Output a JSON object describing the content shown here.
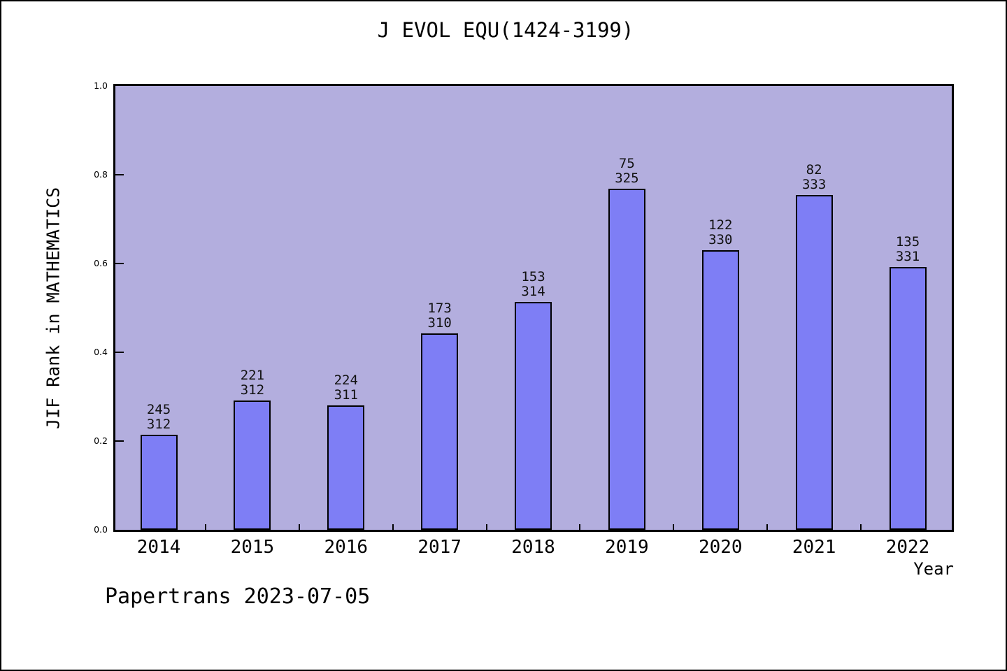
{
  "window": {
    "background": "#ffffff",
    "border_color": "#000000"
  },
  "chart_data": {
    "type": "bar",
    "title": "J EVOL EQU(1424-3199)",
    "xlabel": "Year",
    "ylabel": "JIF Rank in MATHEMATICS",
    "categories": [
      "2014",
      "2015",
      "2016",
      "2017",
      "2018",
      "2019",
      "2020",
      "2021",
      "2022"
    ],
    "series": [
      {
        "name": "rank",
        "values": [
          245,
          221,
          224,
          173,
          153,
          75,
          122,
          82,
          135
        ]
      },
      {
        "name": "category_size",
        "values": [
          312,
          312,
          311,
          310,
          314,
          325,
          330,
          333,
          331
        ]
      }
    ],
    "values": [
      0.2147,
      0.2917,
      0.2797,
      0.4419,
      0.5127,
      0.7692,
      0.6303,
      0.7538,
      0.5922
    ],
    "bar_label_note": "each bar is annotated with rank (top line) over category size (bottom line)",
    "yticks": [
      0.0,
      0.2,
      0.4,
      0.6,
      0.8,
      1.0
    ],
    "ylim": [
      0,
      1
    ],
    "grid": false,
    "legend": false,
    "colors": {
      "bar_fill": "#7e7ef5",
      "bar_border": "#000000",
      "plot_background": "#b3aede",
      "text": "#000000"
    }
  },
  "footer": {
    "text": "Papertrans 2023-07-05"
  }
}
